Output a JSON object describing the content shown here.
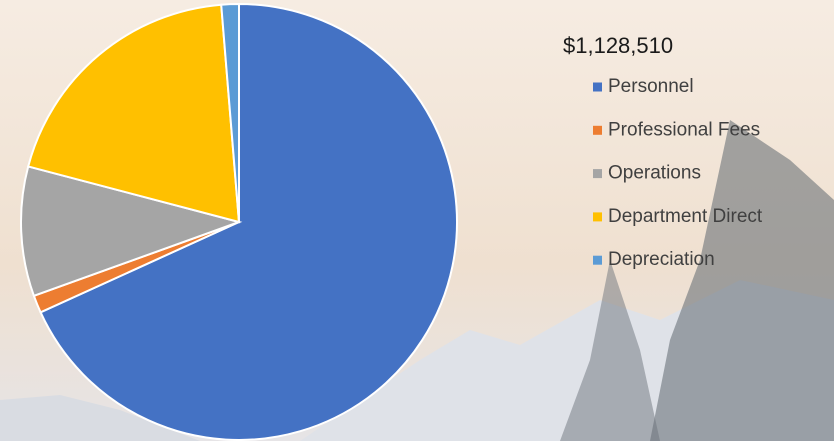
{
  "chart_data": {
    "type": "pie",
    "title": "$1,128,510",
    "categories": [
      "Personnel",
      "Professional Fees",
      "Operations",
      "Department Direct",
      "Depreciation"
    ],
    "values": [
      68.2,
      1.3,
      9.6,
      19.6,
      1.3
    ],
    "colors": [
      "#4472c4",
      "#ed7d31",
      "#a5a5a5",
      "#ffc000",
      "#5b9bd5"
    ]
  }
}
